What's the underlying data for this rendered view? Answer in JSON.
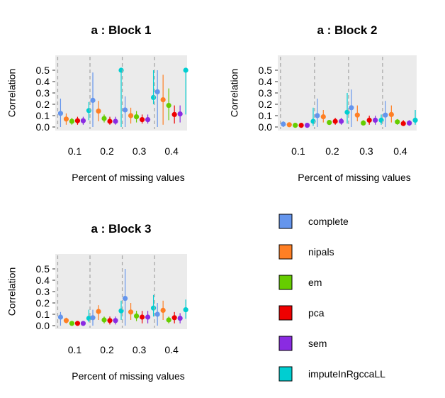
{
  "chart_data": {
    "type": "scatter",
    "method_colors": {
      "complete": "#6495ED",
      "nipals": "#FF7F24",
      "em": "#66CD00",
      "pca": "#EE0000",
      "sem": "#8A2BE2",
      "imputeInRgccaLL": "#00CED1"
    },
    "legend": {
      "placement": "bottom-right",
      "entries": [
        "complete",
        "nipals",
        "em",
        "pca",
        "sem",
        "imputeInRgccaLL"
      ]
    },
    "panels": [
      {
        "title": "a : Block 1",
        "xlabel": "Percent of missing values",
        "ylabel": "Correlation",
        "ylim": [
          0,
          0.52
        ],
        "yticks": [
          "0.0",
          "0.1",
          "0.2",
          "0.3",
          "0.4",
          "0.5"
        ],
        "categories": [
          "0.1",
          "0.2",
          "0.3",
          "0.4"
        ],
        "series": [
          {
            "name": "complete",
            "values": [
              0.12,
              0.235,
              0.15,
              0.31
            ],
            "low": [
              0.0,
              0.0,
              0.0,
              0.0
            ],
            "high": [
              0.25,
              0.48,
              0.27,
              0.5
            ]
          },
          {
            "name": "nipals",
            "values": [
              0.07,
              0.14,
              0.1,
              0.24
            ],
            "low": [
              0.02,
              0.05,
              0.03,
              0.02
            ],
            "high": [
              0.12,
              0.23,
              0.17,
              0.46
            ]
          },
          {
            "name": "em",
            "values": [
              0.05,
              0.075,
              0.09,
              0.19
            ],
            "low": [
              0.02,
              0.04,
              0.04,
              0.06
            ],
            "high": [
              0.08,
              0.11,
              0.14,
              0.34
            ]
          },
          {
            "name": "pca",
            "values": [
              0.055,
              0.05,
              0.065,
              0.11
            ],
            "low": [
              0.02,
              0.02,
              0.03,
              0.03
            ],
            "high": [
              0.09,
              0.09,
              0.11,
              0.19
            ]
          },
          {
            "name": "sem",
            "values": [
              0.055,
              0.05,
              0.065,
              0.115
            ],
            "low": [
              0.02,
              0.02,
              0.03,
              0.04
            ],
            "high": [
              0.09,
              0.09,
              0.11,
              0.19
            ]
          },
          {
            "name": "imputeInRgccaLL",
            "values": [
              0.145,
              0.5,
              0.26,
              0.5
            ],
            "low": [
              0.06,
              0.0,
              0.2,
              0.11
            ],
            "high": [
              0.22,
              0.5,
              0.5,
              0.5
            ]
          }
        ]
      },
      {
        "title": "a : Block 2",
        "xlabel": "Percent of missing values",
        "ylabel": "Correlation",
        "ylim": [
          0,
          0.52
        ],
        "yticks": [
          "0.0",
          "0.1",
          "0.2",
          "0.3",
          "0.4",
          "0.5"
        ],
        "categories": [
          "0.1",
          "0.2",
          "0.3",
          "0.4"
        ],
        "series": [
          {
            "name": "complete",
            "values": [
              0.025,
              0.1,
              0.17,
              0.105
            ],
            "low": [
              0.0,
              0.0,
              0.0,
              0.0
            ],
            "high": [
              0.05,
              0.25,
              0.33,
              0.23
            ]
          },
          {
            "name": "nipals",
            "values": [
              0.02,
              0.09,
              0.105,
              0.11
            ],
            "low": [
              0.01,
              0.04,
              0.05,
              0.04
            ],
            "high": [
              0.03,
              0.15,
              0.19,
              0.19
            ]
          },
          {
            "name": "em",
            "values": [
              0.015,
              0.04,
              0.035,
              0.045
            ],
            "low": [
              0.005,
              0.02,
              0.02,
              0.02
            ],
            "high": [
              0.02,
              0.06,
              0.06,
              0.07
            ]
          },
          {
            "name": "pca",
            "values": [
              0.015,
              0.05,
              0.06,
              0.03
            ],
            "low": [
              0.005,
              0.02,
              0.02,
              0.01
            ],
            "high": [
              0.02,
              0.08,
              0.1,
              0.06
            ]
          },
          {
            "name": "sem",
            "values": [
              0.015,
              0.05,
              0.06,
              0.035
            ],
            "low": [
              0.005,
              0.02,
              0.02,
              0.01
            ],
            "high": [
              0.02,
              0.08,
              0.1,
              0.06
            ]
          },
          {
            "name": "imputeInRgccaLL",
            "values": [
              0.05,
              0.13,
              0.06,
              0.06
            ],
            "low": [
              0.01,
              0.03,
              0.02,
              0.02
            ],
            "high": [
              0.17,
              0.3,
              0.11,
              0.15
            ]
          }
        ]
      },
      {
        "title": "a : Block 3",
        "xlabel": "Percent of missing values",
        "ylabel": "Correlation",
        "ylim": [
          0,
          0.52
        ],
        "yticks": [
          "0.0",
          "0.1",
          "0.2",
          "0.3",
          "0.4",
          "0.5"
        ],
        "categories": [
          "0.1",
          "0.2",
          "0.3",
          "0.4"
        ],
        "series": [
          {
            "name": "complete",
            "values": [
              0.075,
              0.07,
              0.24,
              0.1
            ],
            "low": [
              0.0,
              0.0,
              0.0,
              0.0
            ],
            "high": [
              0.12,
              0.14,
              0.5,
              0.2
            ]
          },
          {
            "name": "nipals",
            "values": [
              0.045,
              0.125,
              0.12,
              0.135
            ],
            "low": [
              0.02,
              0.05,
              0.05,
              0.05
            ],
            "high": [
              0.07,
              0.18,
              0.2,
              0.22
            ]
          },
          {
            "name": "em",
            "values": [
              0.02,
              0.05,
              0.085,
              0.05
            ],
            "low": [
              0.01,
              0.02,
              0.04,
              0.02
            ],
            "high": [
              0.03,
              0.08,
              0.13,
              0.08
            ]
          },
          {
            "name": "pca",
            "values": [
              0.02,
              0.045,
              0.075,
              0.07
            ],
            "low": [
              0.01,
              0.01,
              0.02,
              0.02
            ],
            "high": [
              0.03,
              0.08,
              0.13,
              0.12
            ]
          },
          {
            "name": "sem",
            "values": [
              0.02,
              0.045,
              0.075,
              0.065
            ],
            "low": [
              0.01,
              0.01,
              0.02,
              0.02
            ],
            "high": [
              0.03,
              0.08,
              0.13,
              0.11
            ]
          },
          {
            "name": "imputeInRgccaLL",
            "values": [
              0.065,
              0.13,
              0.155,
              0.14
            ],
            "low": [
              0.03,
              0.05,
              0.08,
              0.06
            ],
            "high": [
              0.14,
              0.22,
              0.27,
              0.23
            ]
          }
        ]
      }
    ]
  }
}
